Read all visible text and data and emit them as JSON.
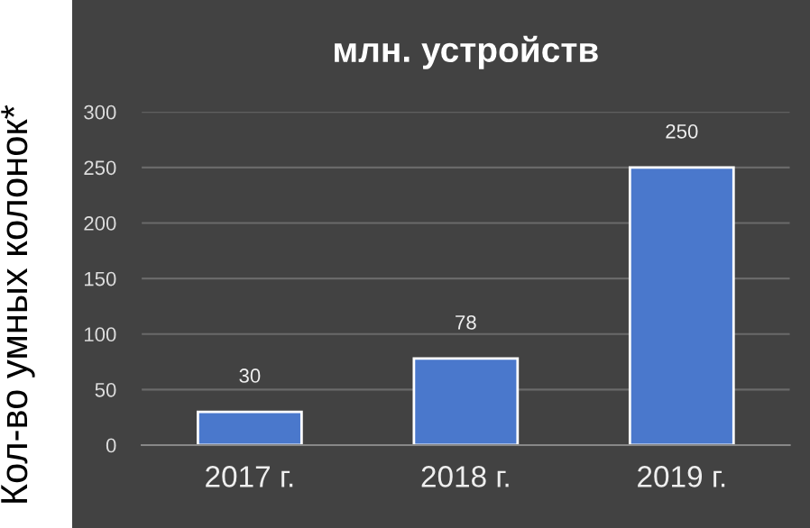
{
  "chart_data": {
    "type": "bar",
    "title": "млн. устройств",
    "ylabel": "Кол-во умных колонок*",
    "categories": [
      "2017 г.",
      "2018 г.",
      "2019 г."
    ],
    "values": [
      30,
      78,
      250
    ],
    "color": "#4a78cc",
    "ylim": [
      0,
      300
    ],
    "yticks": [
      0,
      50,
      100,
      150,
      200,
      250,
      300
    ],
    "grid": "y",
    "data_labels": true
  }
}
